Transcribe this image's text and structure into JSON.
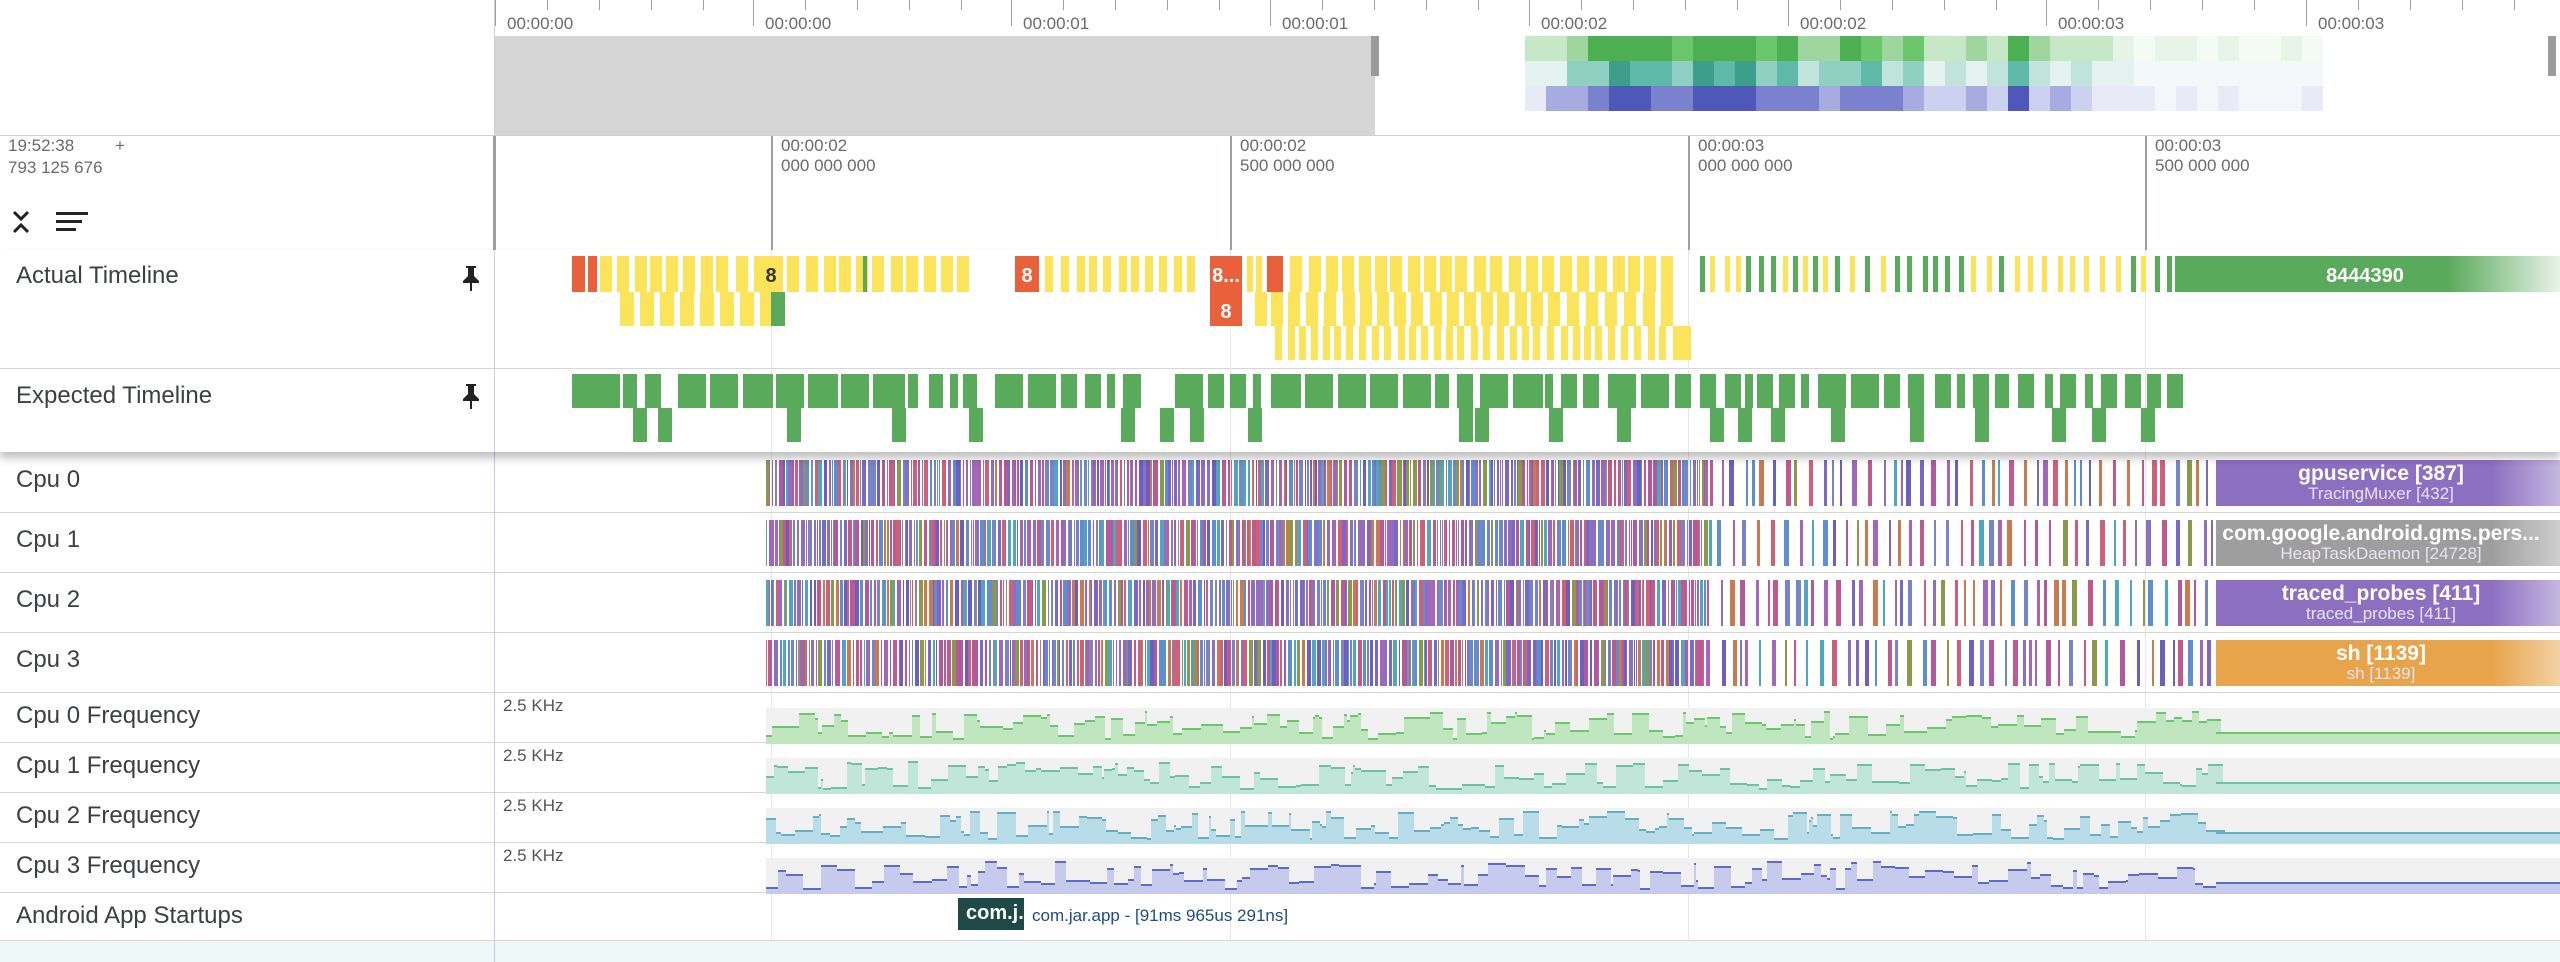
{
  "overview": {
    "ticks": [
      "00:00:00",
      "00:00:00",
      "00:00:01",
      "00:00:01",
      "00:00:02",
      "00:00:02",
      "00:00:03",
      "00:00:03"
    ]
  },
  "header": {
    "timestamp": "19:52:38",
    "timestamp_sub": "793 125 676",
    "plus": "+",
    "collapse_icon": "collapse-all-icon",
    "filter_icon": "sort-lines-icon"
  },
  "ruler": {
    "ticks": [
      {
        "main": "00:00:02",
        "sub": "000 000 000"
      },
      {
        "main": "00:00:02",
        "sub": "500 000 000"
      },
      {
        "main": "00:00:03",
        "sub": "000 000 000"
      },
      {
        "main": "00:00:03",
        "sub": "500 000 000"
      }
    ]
  },
  "tracks": {
    "actual_timeline": {
      "label": "Actual Timeline",
      "slice_labels": [
        "8",
        "8",
        "8...",
        "8",
        "8444390"
      ]
    },
    "expected_timeline": {
      "label": "Expected Timeline"
    },
    "cpus": [
      {
        "label": "Cpu 0",
        "proc": "gpuservice [387]",
        "thread": "TracingMuxer [432]",
        "color": "#8c6fc1"
      },
      {
        "label": "Cpu 1",
        "proc": "com.google.android.gms.pers...",
        "thread": "HeapTaskDaemon [24728]",
        "color": "#9e9e9e"
      },
      {
        "label": "Cpu 2",
        "proc": "traced_probes [411]",
        "thread": "traced_probes [411]",
        "color": "#8c6fc1"
      },
      {
        "label": "Cpu 3",
        "proc": "sh [1139]",
        "thread": "sh [1139]",
        "color": "#e8a44a"
      }
    ],
    "freqs": [
      {
        "label": "Cpu 0 Frequency",
        "scale": "2.5 KHz",
        "color": "#6cc66b"
      },
      {
        "label": "Cpu 1 Frequency",
        "scale": "2.5 KHz",
        "color": "#6dc3a1"
      },
      {
        "label": "Cpu 2 Frequency",
        "scale": "2.5 KHz",
        "color": "#66aec8"
      },
      {
        "label": "Cpu 3 Frequency",
        "scale": "2.5 KHz",
        "color": "#5a6cc8"
      }
    ],
    "startups": {
      "label": "Android App Startups",
      "slice": "com.j...",
      "detail": "com.jar.app - [91ms 965us 291ns]"
    }
  },
  "colors": {
    "yellow": "#fbe35a",
    "orange": "#e8613a",
    "green": "#5aaa5c",
    "grid": "#e6e6e6"
  }
}
